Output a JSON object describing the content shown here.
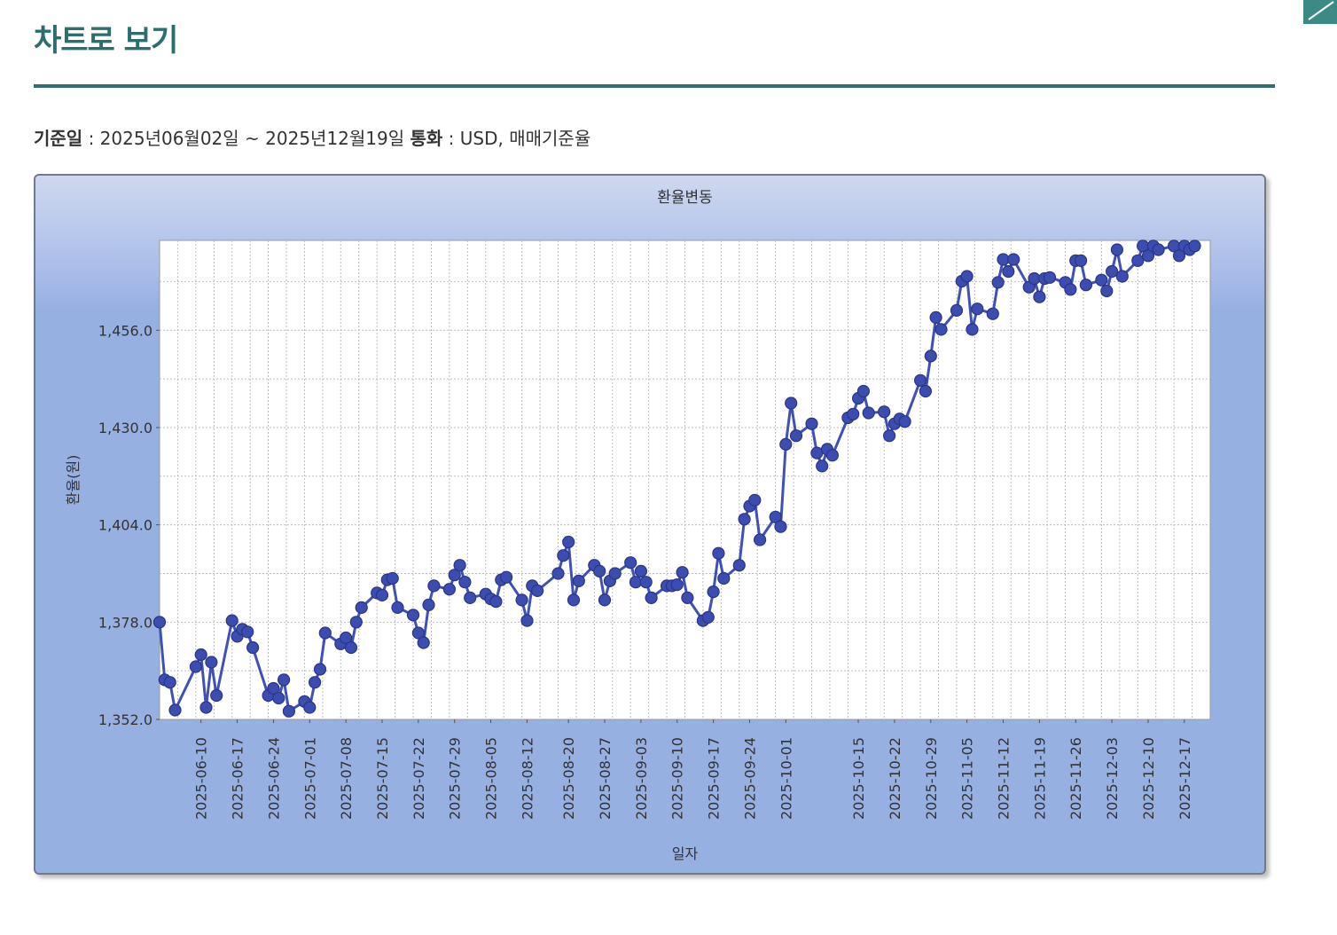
{
  "page_title": "차트로 보기",
  "meta": {
    "date_label": "기준일",
    "date_value": "2025년06월02일 ~ 2025년12월19일",
    "currency_label": "통화",
    "currency_value": "USD, 매매기준율"
  },
  "corner_button": {
    "icon": "expand-icon"
  },
  "colors": {
    "accent": "#2f6f70",
    "series": "#3f51b5",
    "plot_bg": "#ffffff",
    "frame_bg": "#97b0e2"
  },
  "chart_data": {
    "type": "line",
    "title": "환율변동",
    "xlabel": "일자",
    "ylabel": "환율(원)",
    "ylim": [
      1352,
      1480
    ],
    "yticks": [
      1352,
      1378,
      1404,
      1430,
      1456
    ],
    "ytick_labels": [
      "1,352.0",
      "1,378.0",
      "1,404.0",
      "1,430.0",
      "1,456.0"
    ],
    "xlim": [
      "2025-06-02",
      "2025-12-22"
    ],
    "xticks": [
      "2025-06-10",
      "2025-06-17",
      "2025-06-24",
      "2025-07-01",
      "2025-07-08",
      "2025-07-15",
      "2025-07-22",
      "2025-07-29",
      "2025-08-05",
      "2025-08-12",
      "2025-08-20",
      "2025-08-27",
      "2025-09-03",
      "2025-09-10",
      "2025-09-17",
      "2025-09-24",
      "2025-10-01",
      "2025-10-15",
      "2025-10-22",
      "2025-10-29",
      "2025-11-05",
      "2025-11-12",
      "2025-11-19",
      "2025-11-26",
      "2025-12-03",
      "2025-12-10",
      "2025-12-17"
    ],
    "grid": true,
    "legend": "none",
    "series": [
      {
        "values": [
          {
            "x": "2025-06-02",
            "y": 1378.0
          },
          {
            "x": "2025-06-03",
            "y": 1362.6
          },
          {
            "x": "2025-06-04",
            "y": 1361.9
          },
          {
            "x": "2025-06-05",
            "y": 1354.5
          },
          {
            "x": "2025-06-09",
            "y": 1366.1
          },
          {
            "x": "2025-06-10",
            "y": 1369.3
          },
          {
            "x": "2025-06-11",
            "y": 1355.2
          },
          {
            "x": "2025-06-12",
            "y": 1367.3
          },
          {
            "x": "2025-06-13",
            "y": 1358.4
          },
          {
            "x": "2025-06-16",
            "y": 1378.4
          },
          {
            "x": "2025-06-17",
            "y": 1374.2
          },
          {
            "x": "2025-06-18",
            "y": 1376.1
          },
          {
            "x": "2025-06-19",
            "y": 1375.4
          },
          {
            "x": "2025-06-20",
            "y": 1371.2
          },
          {
            "x": "2025-06-23",
            "y": 1358.4
          },
          {
            "x": "2025-06-24",
            "y": 1360.3
          },
          {
            "x": "2025-06-25",
            "y": 1357.7
          },
          {
            "x": "2025-06-26",
            "y": 1362.6
          },
          {
            "x": "2025-06-27",
            "y": 1354.2
          },
          {
            "x": "2025-06-30",
            "y": 1356.8
          },
          {
            "x": "2025-07-01",
            "y": 1355.2
          },
          {
            "x": "2025-07-02",
            "y": 1361.9
          },
          {
            "x": "2025-07-03",
            "y": 1365.4
          },
          {
            "x": "2025-07-04",
            "y": 1375.1
          },
          {
            "x": "2025-07-07",
            "y": 1372.2
          },
          {
            "x": "2025-07-08",
            "y": 1373.8
          },
          {
            "x": "2025-07-09",
            "y": 1371.2
          },
          {
            "x": "2025-07-10",
            "y": 1378.0
          },
          {
            "x": "2025-07-11",
            "y": 1381.9
          },
          {
            "x": "2025-07-14",
            "y": 1385.8
          },
          {
            "x": "2025-07-15",
            "y": 1385.2
          },
          {
            "x": "2025-07-16",
            "y": 1389.3
          },
          {
            "x": "2025-07-17",
            "y": 1389.7
          },
          {
            "x": "2025-07-18",
            "y": 1381.9
          },
          {
            "x": "2025-07-21",
            "y": 1379.9
          },
          {
            "x": "2025-07-22",
            "y": 1375.1
          },
          {
            "x": "2025-07-23",
            "y": 1372.5
          },
          {
            "x": "2025-07-24",
            "y": 1382.6
          },
          {
            "x": "2025-07-25",
            "y": 1387.7
          },
          {
            "x": "2025-07-28",
            "y": 1386.8
          },
          {
            "x": "2025-07-29",
            "y": 1390.6
          },
          {
            "x": "2025-07-30",
            "y": 1393.2
          },
          {
            "x": "2025-07-31",
            "y": 1388.7
          },
          {
            "x": "2025-08-01",
            "y": 1384.5
          },
          {
            "x": "2025-08-04",
            "y": 1385.5
          },
          {
            "x": "2025-08-05",
            "y": 1384.2
          },
          {
            "x": "2025-08-06",
            "y": 1383.5
          },
          {
            "x": "2025-08-07",
            "y": 1389.3
          },
          {
            "x": "2025-08-08",
            "y": 1390.0
          },
          {
            "x": "2025-08-11",
            "y": 1383.9
          },
          {
            "x": "2025-08-12",
            "y": 1378.4
          },
          {
            "x": "2025-08-13",
            "y": 1387.7
          },
          {
            "x": "2025-08-14",
            "y": 1386.4
          },
          {
            "x": "2025-08-18",
            "y": 1391.0
          },
          {
            "x": "2025-08-19",
            "y": 1395.8
          },
          {
            "x": "2025-08-20",
            "y": 1399.4
          },
          {
            "x": "2025-08-21",
            "y": 1383.9
          },
          {
            "x": "2025-08-22",
            "y": 1389.0
          },
          {
            "x": "2025-08-25",
            "y": 1393.2
          },
          {
            "x": "2025-08-26",
            "y": 1391.6
          },
          {
            "x": "2025-08-27",
            "y": 1383.9
          },
          {
            "x": "2025-08-28",
            "y": 1389.0
          },
          {
            "x": "2025-08-29",
            "y": 1391.0
          },
          {
            "x": "2025-09-01",
            "y": 1393.9
          },
          {
            "x": "2025-09-02",
            "y": 1388.7
          },
          {
            "x": "2025-09-03",
            "y": 1391.6
          },
          {
            "x": "2025-09-04",
            "y": 1388.7
          },
          {
            "x": "2025-09-05",
            "y": 1384.5
          },
          {
            "x": "2025-09-08",
            "y": 1387.7
          },
          {
            "x": "2025-09-09",
            "y": 1387.7
          },
          {
            "x": "2025-09-10",
            "y": 1388.0
          },
          {
            "x": "2025-09-11",
            "y": 1391.3
          },
          {
            "x": "2025-09-12",
            "y": 1384.5
          },
          {
            "x": "2025-09-15",
            "y": 1378.4
          },
          {
            "x": "2025-09-16",
            "y": 1379.3
          },
          {
            "x": "2025-09-17",
            "y": 1386.1
          },
          {
            "x": "2025-09-18",
            "y": 1396.4
          },
          {
            "x": "2025-09-19",
            "y": 1389.7
          },
          {
            "x": "2025-09-22",
            "y": 1393.2
          },
          {
            "x": "2025-09-23",
            "y": 1405.5
          },
          {
            "x": "2025-09-24",
            "y": 1409.0
          },
          {
            "x": "2025-09-25",
            "y": 1410.6
          },
          {
            "x": "2025-09-26",
            "y": 1400.0
          },
          {
            "x": "2025-09-29",
            "y": 1406.1
          },
          {
            "x": "2025-09-30",
            "y": 1403.5
          },
          {
            "x": "2025-10-01",
            "y": 1425.5
          },
          {
            "x": "2025-10-02",
            "y": 1436.5
          },
          {
            "x": "2025-10-03",
            "y": 1427.8
          },
          {
            "x": "2025-10-06",
            "y": 1431.0
          },
          {
            "x": "2025-10-07",
            "y": 1423.2
          },
          {
            "x": "2025-10-08",
            "y": 1419.7
          },
          {
            "x": "2025-10-09",
            "y": 1424.2
          },
          {
            "x": "2025-10-10",
            "y": 1422.6
          },
          {
            "x": "2025-10-13",
            "y": 1432.6
          },
          {
            "x": "2025-10-14",
            "y": 1433.6
          },
          {
            "x": "2025-10-15",
            "y": 1437.8
          },
          {
            "x": "2025-10-16",
            "y": 1439.7
          },
          {
            "x": "2025-10-17",
            "y": 1433.9
          },
          {
            "x": "2025-10-20",
            "y": 1434.2
          },
          {
            "x": "2025-10-21",
            "y": 1427.8
          },
          {
            "x": "2025-10-22",
            "y": 1431.0
          },
          {
            "x": "2025-10-23",
            "y": 1432.3
          },
          {
            "x": "2025-10-24",
            "y": 1431.6
          },
          {
            "x": "2025-10-27",
            "y": 1442.6
          },
          {
            "x": "2025-10-28",
            "y": 1439.7
          },
          {
            "x": "2025-10-29",
            "y": 1449.1
          },
          {
            "x": "2025-10-30",
            "y": 1459.4
          },
          {
            "x": "2025-10-31",
            "y": 1456.2
          },
          {
            "x": "2025-11-03",
            "y": 1461.3
          },
          {
            "x": "2025-11-04",
            "y": 1469.1
          },
          {
            "x": "2025-11-05",
            "y": 1470.4
          },
          {
            "x": "2025-11-06",
            "y": 1456.2
          },
          {
            "x": "2025-11-07",
            "y": 1461.7
          },
          {
            "x": "2025-11-10",
            "y": 1460.4
          },
          {
            "x": "2025-11-11",
            "y": 1468.8
          },
          {
            "x": "2025-11-12",
            "y": 1474.9
          },
          {
            "x": "2025-11-13",
            "y": 1471.7
          },
          {
            "x": "2025-11-14",
            "y": 1474.9
          },
          {
            "x": "2025-11-17",
            "y": 1467.5
          },
          {
            "x": "2025-11-18",
            "y": 1469.8
          },
          {
            "x": "2025-11-19",
            "y": 1464.9
          },
          {
            "x": "2025-11-20",
            "y": 1469.8
          },
          {
            "x": "2025-11-21",
            "y": 1470.1
          },
          {
            "x": "2025-11-24",
            "y": 1468.8
          },
          {
            "x": "2025-11-25",
            "y": 1466.9
          },
          {
            "x": "2025-11-26",
            "y": 1474.6
          },
          {
            "x": "2025-11-27",
            "y": 1474.6
          },
          {
            "x": "2025-11-28",
            "y": 1468.1
          },
          {
            "x": "2025-12-01",
            "y": 1469.4
          },
          {
            "x": "2025-12-02",
            "y": 1466.5
          },
          {
            "x": "2025-12-03",
            "y": 1471.7
          },
          {
            "x": "2025-12-04",
            "y": 1477.5
          },
          {
            "x": "2025-12-05",
            "y": 1470.4
          },
          {
            "x": "2025-12-08",
            "y": 1474.6
          },
          {
            "x": "2025-12-09",
            "y": 1478.5
          },
          {
            "x": "2025-12-10",
            "y": 1475.9
          },
          {
            "x": "2025-12-11",
            "y": 1478.5
          },
          {
            "x": "2025-12-12",
            "y": 1477.5
          },
          {
            "x": "2025-12-15",
            "y": 1478.5
          },
          {
            "x": "2025-12-16",
            "y": 1475.9
          },
          {
            "x": "2025-12-17",
            "y": 1478.5
          },
          {
            "x": "2025-12-18",
            "y": 1477.5
          },
          {
            "x": "2025-12-19",
            "y": 1478.5
          }
        ]
      }
    ]
  }
}
